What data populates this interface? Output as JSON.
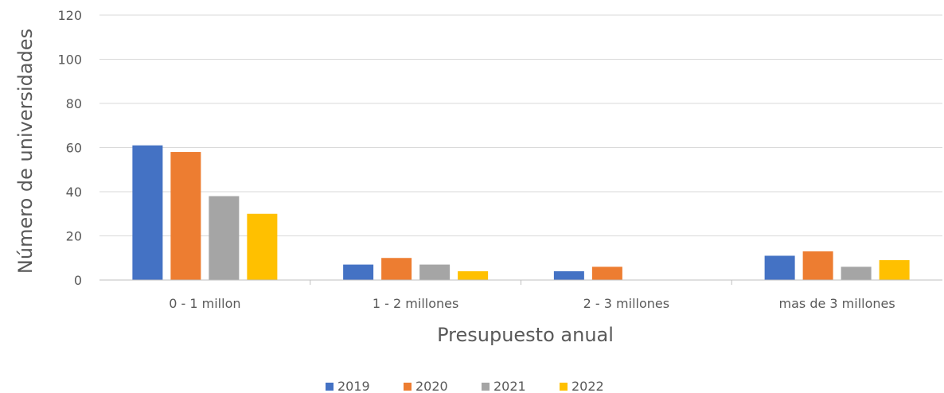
{
  "chart_data": {
    "type": "bar",
    "title": "",
    "xlabel": "Presupuesto anual",
    "ylabel": "Número de universidades",
    "ylim": [
      0,
      120
    ],
    "yticks": [
      0,
      20,
      40,
      60,
      80,
      100,
      120
    ],
    "grid": true,
    "legend_position": "bottom",
    "categories": [
      "0 - 1 millon",
      "1 - 2 millones",
      "2 - 3 millones",
      "mas de 3 millones"
    ],
    "series": [
      {
        "name": "2019",
        "color": "#4472C4",
        "values": [
          61,
          7,
          4,
          11
        ]
      },
      {
        "name": "2020",
        "color": "#ED7D31",
        "values": [
          58,
          10,
          6,
          13
        ]
      },
      {
        "name": "2021",
        "color": "#A5A5A5",
        "values": [
          38,
          7,
          0,
          6
        ]
      },
      {
        "name": "2022",
        "color": "#FFC000",
        "values": [
          30,
          4,
          0,
          9
        ]
      }
    ]
  }
}
